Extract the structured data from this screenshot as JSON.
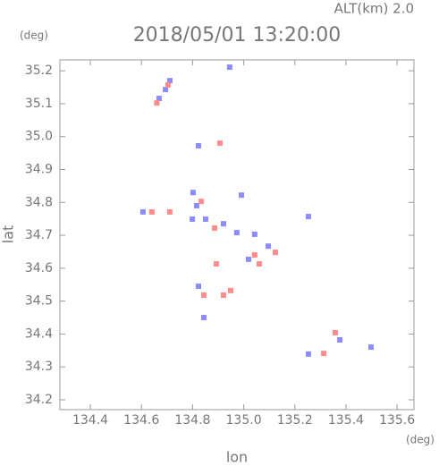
{
  "chart_data": {
    "type": "scatter",
    "title": "2018/05/01 13:20:00",
    "subtitle": "ALT(km) 2.0",
    "xlabel": "lon",
    "ylabel": "lat",
    "xunit": "(deg)",
    "yunit": "(deg)",
    "xlim": [
      134.281,
      135.666
    ],
    "ylim": [
      34.17,
      35.233
    ],
    "xticks": [
      134.4,
      134.6,
      134.8,
      {
        "value": 135,
        "label": "135.0"
      },
      135.2,
      135.4,
      135.6
    ],
    "yticks": [
      34.2,
      34.3,
      34.4,
      34.5,
      34.6,
      34.7,
      34.8,
      34.9,
      {
        "value": 35,
        "label": "35.0"
      },
      35.1,
      35.2
    ],
    "series": [
      {
        "color": "#8c8cff",
        "x": [
          134.945,
          134.711,
          134.694,
          134.669,
          134.823,
          134.802,
          134.816,
          134.606,
          134.799,
          134.851,
          134.921,
          134.991,
          134.973,
          135.043,
          135.096,
          135.253,
          134.823,
          134.844,
          135.376,
          135.253,
          135.498,
          135.019
        ],
        "y": [
          35.211,
          35.17,
          35.143,
          35.116,
          34.972,
          34.83,
          34.79,
          34.771,
          34.749,
          34.749,
          34.735,
          34.822,
          34.708,
          34.703,
          34.667,
          34.757,
          34.545,
          34.45,
          34.382,
          34.339,
          34.36,
          34.627
        ]
      },
      {
        "color": "#ff8c8c",
        "x": [
          134.704,
          134.66,
          134.907,
          134.641,
          134.711,
          134.834,
          134.886,
          135.061,
          135.043,
          134.921,
          134.949,
          134.893,
          135.358,
          135.313,
          134.844,
          135.124
        ],
        "y": [
          35.157,
          35.102,
          34.98,
          34.771,
          34.771,
          34.803,
          34.722,
          34.613,
          34.64,
          34.518,
          34.532,
          34.613,
          34.404,
          34.341,
          34.518,
          34.648
        ]
      }
    ]
  }
}
